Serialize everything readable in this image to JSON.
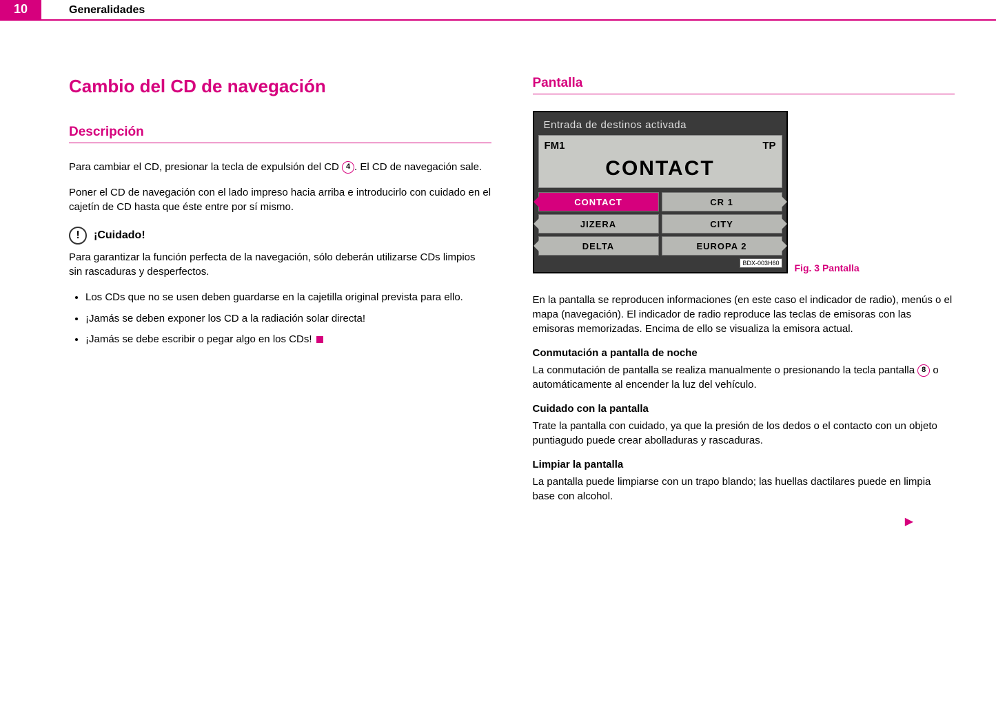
{
  "header": {
    "page_num": "10",
    "section": "Generalidades"
  },
  "left": {
    "h1": "Cambio del CD de navegación",
    "h2": "Descripción",
    "p1a": "Para cambiar el CD, presionar la tecla de expulsión del CD ",
    "ref4": "4",
    "p1b": ". El CD de navegación sale.",
    "p2": "Poner el CD de navegación con el lado impreso hacia arriba e introducirlo con cuidado en el cajetín de CD hasta que éste entre por sí mismo.",
    "caution": "¡Cuidado!",
    "p3": "Para garantizar la función perfecta de la navegación, sólo deberán utilizarse CDs limpios sin rascaduras y desperfectos.",
    "b1": "Los CDs que no se usen deben guardarse en la cajetilla original prevista para ello.",
    "b2": "¡Jamás se deben exponer los CD a la radiación solar directa!",
    "b3": "¡Jamás se debe escribir o pegar algo en los CDs!"
  },
  "right": {
    "h2": "Pantalla",
    "screen": {
      "title": "Entrada de destinos activada",
      "band": "FM1",
      "tp": "TP",
      "station": "CONTACT",
      "presets": [
        {
          "label": "CONTACT",
          "active": true,
          "side": "left"
        },
        {
          "label": "CR 1",
          "active": false,
          "side": "right"
        },
        {
          "label": "JIZERA",
          "active": false,
          "side": "left"
        },
        {
          "label": "CITY",
          "active": false,
          "side": "right"
        },
        {
          "label": "DELTA",
          "active": false,
          "side": "left"
        },
        {
          "label": "EUROPA 2",
          "active": false,
          "side": "right"
        }
      ],
      "code": "BDX-003H60"
    },
    "fig": "Fig. 3   Pantalla",
    "p1": "En la pantalla se reproducen informaciones (en este caso el indicador de radio), menús o el mapa (navegación). El indicador de radio reproduce las teclas de emisoras con las emisoras memorizadas. Encima de ello se visualiza la emisora actual.",
    "sh1": "Conmutación a pantalla de noche",
    "p2a": "La conmutación de pantalla se realiza manualmente o presionando la tecla pantalla ",
    "ref8": "8",
    "p2b": " o automáticamente al encender la luz del vehículo.",
    "sh2": "Cuidado con la pantalla",
    "p3": "Trate la pantalla con cuidado, ya que la presión de los dedos o el contacto con un objeto puntiagudo puede crear abolladuras y rascaduras.",
    "sh3": "Limpiar la pantalla",
    "p4": "La pantalla puede limpiarse con un trapo blando; las huellas dactilares puede en limpia base con alcohol."
  }
}
